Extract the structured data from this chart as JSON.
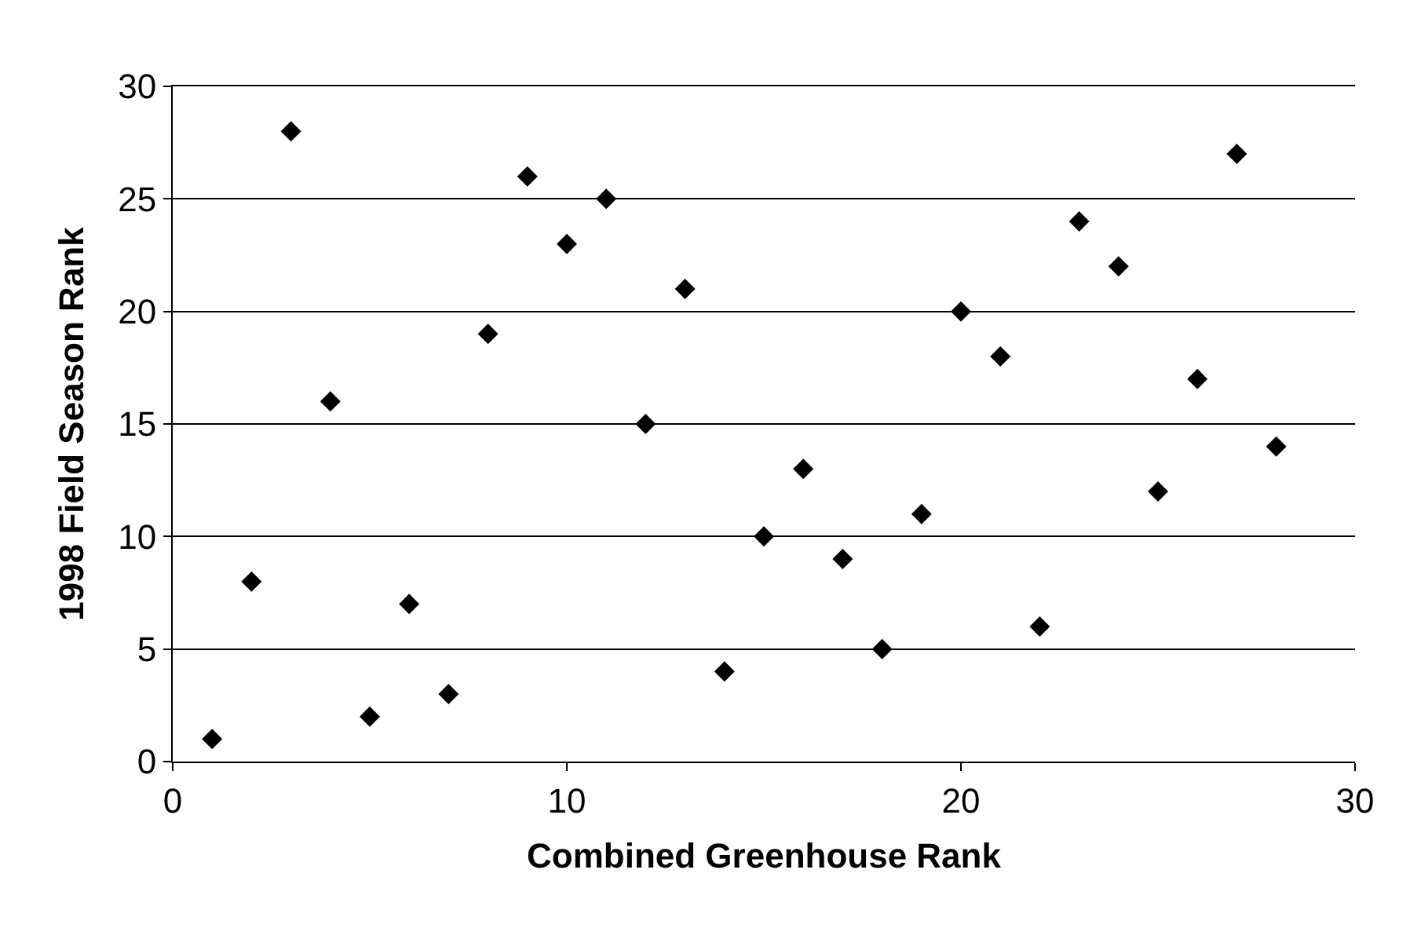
{
  "chart_data": {
    "type": "scatter",
    "xlabel": "Combined Greenhouse Rank",
    "ylabel": "1998 Field Season Rank",
    "x": [
      1,
      2,
      3,
      4,
      5,
      6,
      7,
      8,
      9,
      10,
      11,
      12,
      13,
      14,
      15,
      16,
      17,
      18,
      19,
      20,
      21,
      22,
      23,
      24,
      25,
      26,
      27,
      28
    ],
    "series": [
      {
        "color": "#000000",
        "values": [
          1,
          8,
          28,
          16,
          2,
          7,
          3,
          19,
          26,
          23,
          25,
          15,
          21,
          4,
          10,
          13,
          9,
          5,
          11,
          20,
          18,
          6,
          24,
          22,
          12,
          17,
          27,
          14
        ]
      }
    ],
    "xlim": [
      0,
      30
    ],
    "xticks": [
      0,
      10,
      20,
      30
    ],
    "ylim": [
      0,
      30
    ],
    "yticks": [
      0,
      5,
      10,
      15,
      20,
      25,
      30
    ],
    "grid": "y",
    "marker": "diamond"
  }
}
